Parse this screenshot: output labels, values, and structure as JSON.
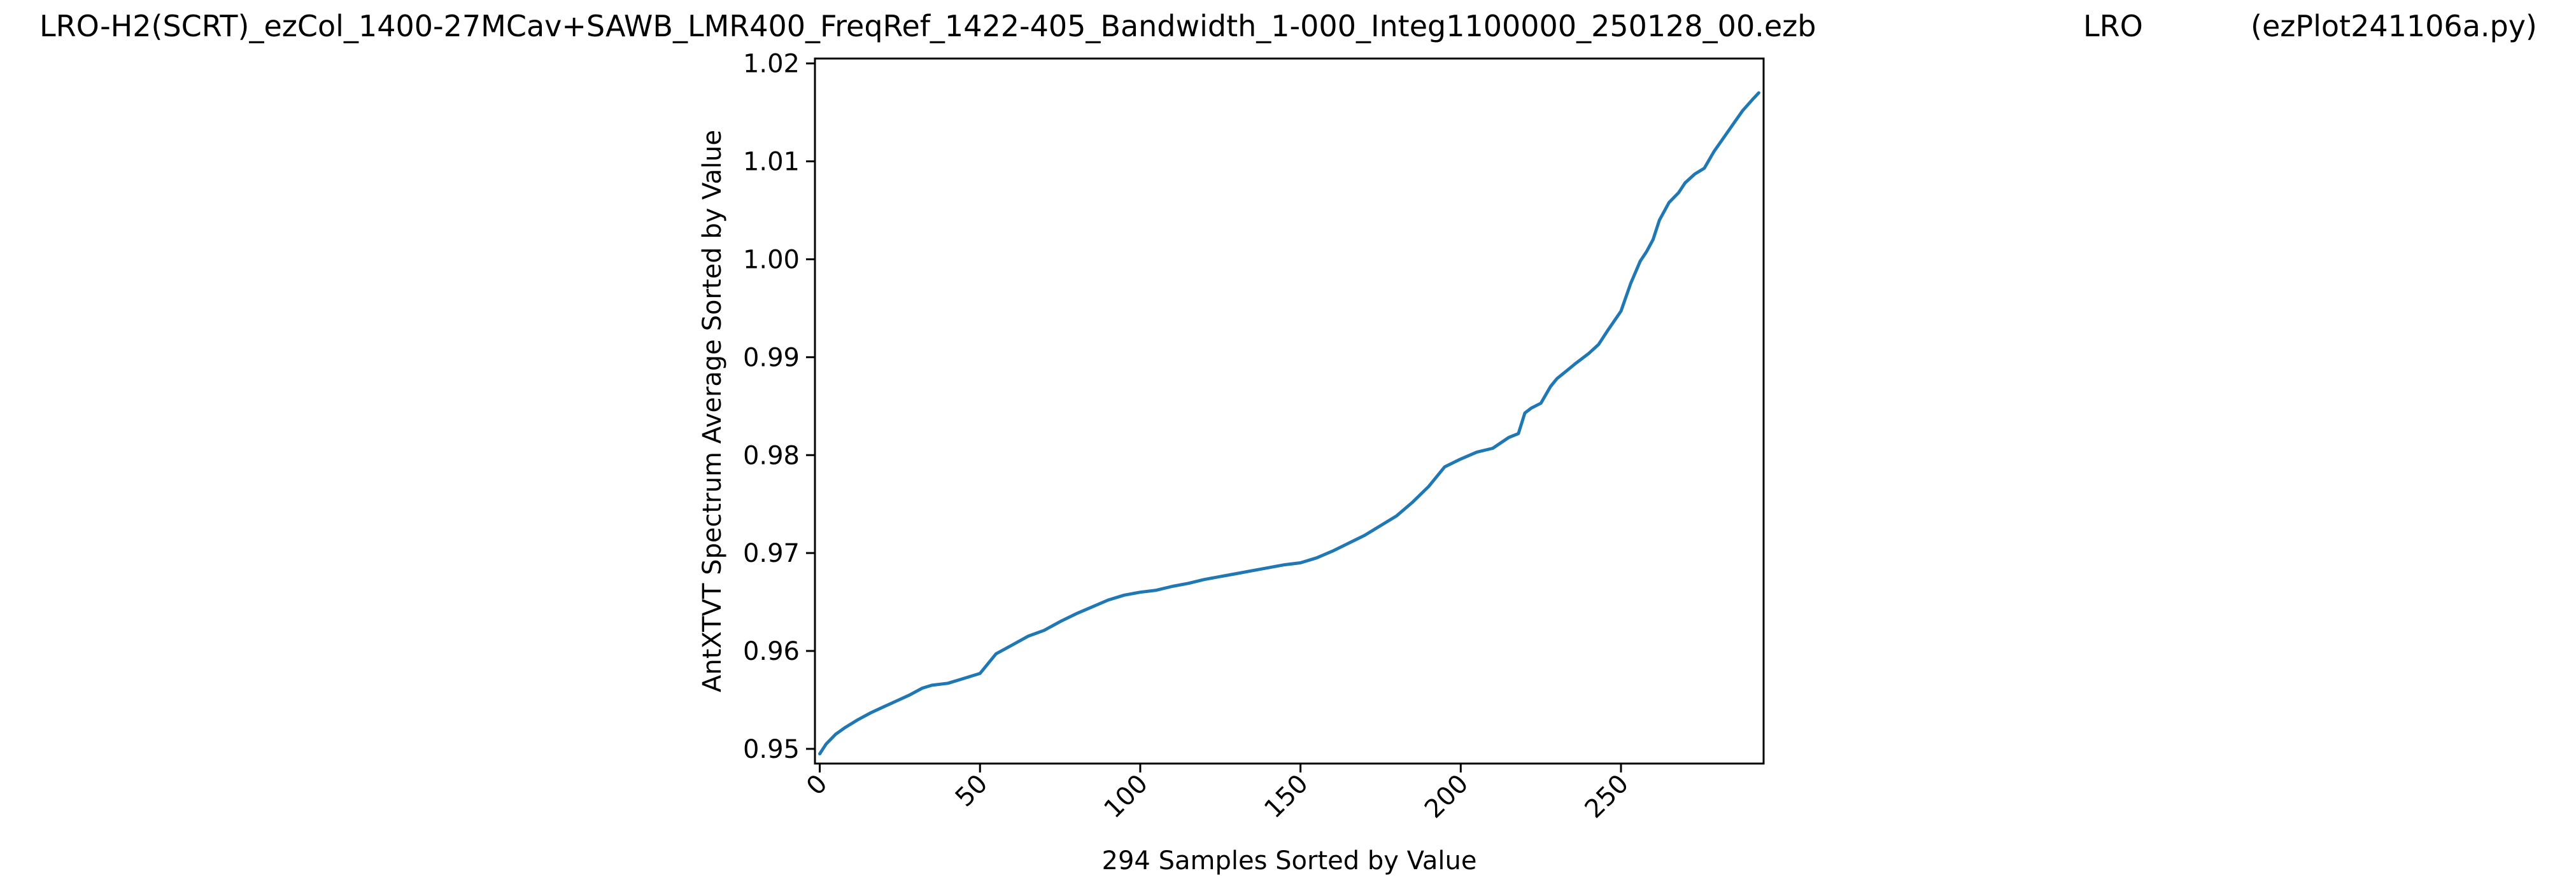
{
  "header": {
    "file_title": "LRO-H2(SCRT)_ezCol_1400-27MCav+SAWB_LMR400_FreqRef_1422-405_Bandwidth_1-000_Integ1100000_250128_00.ezb",
    "station": "LRO",
    "program": "(ezPlot241106a.py)"
  },
  "chart_data": {
    "type": "line",
    "title": "",
    "xlabel": "294 Samples Sorted by Value",
    "ylabel": "AntXTVT Spectrum Average Sorted by Value",
    "xlim": [
      -1.5,
      294.5
    ],
    "ylim": [
      0.9485,
      1.0205
    ],
    "x_ticks": [
      0,
      50,
      100,
      150,
      200,
      250
    ],
    "x_tick_labels": [
      "0",
      "50",
      "100",
      "150",
      "200",
      "250"
    ],
    "y_ticks": [
      0.95,
      0.96,
      0.97,
      0.98,
      0.99,
      1.0,
      1.01,
      1.02
    ],
    "y_tick_labels": [
      "0.95",
      "0.96",
      "0.97",
      "0.98",
      "0.99",
      "1.00",
      "1.01",
      "1.02"
    ],
    "grid": false,
    "series_color": "#1f77b4",
    "series": [
      {
        "x": [
          0,
          2,
          5,
          8,
          12,
          16,
          20,
          24,
          28,
          32,
          35,
          40,
          45,
          50,
          55,
          60,
          65,
          70,
          75,
          80,
          85,
          90,
          95,
          100,
          105,
          110,
          115,
          120,
          125,
          130,
          135,
          140,
          145,
          150,
          155,
          160,
          165,
          170,
          175,
          180,
          185,
          190,
          195,
          200,
          205,
          210,
          215,
          218,
          220,
          222,
          225,
          228,
          230,
          233,
          236,
          240,
          243,
          246,
          250,
          253,
          256,
          258,
          260,
          262,
          265,
          268,
          270,
          273,
          276,
          279,
          282,
          285,
          288,
          291,
          293
        ],
        "y": [
          0.9495,
          0.9505,
          0.9515,
          0.9522,
          0.953,
          0.9537,
          0.9543,
          0.9549,
          0.9555,
          0.9562,
          0.9565,
          0.9567,
          0.9572,
          0.9577,
          0.9597,
          0.9606,
          0.9615,
          0.9621,
          0.963,
          0.9638,
          0.9645,
          0.9652,
          0.9657,
          0.966,
          0.9662,
          0.9666,
          0.9669,
          0.9673,
          0.9676,
          0.9679,
          0.9682,
          0.9685,
          0.9688,
          0.969,
          0.9695,
          0.9702,
          0.971,
          0.9718,
          0.9728,
          0.9738,
          0.9752,
          0.9768,
          0.9788,
          0.9796,
          0.9803,
          0.9807,
          0.9818,
          0.9822,
          0.9843,
          0.9848,
          0.9853,
          0.987,
          0.9878,
          0.9886,
          0.9894,
          0.9904,
          0.9913,
          0.9928,
          0.9947,
          0.9975,
          0.9998,
          1.0008,
          1.002,
          1.004,
          1.0058,
          1.0068,
          1.0078,
          1.0087,
          1.0093,
          1.011,
          1.0124,
          1.0138,
          1.0152,
          1.0163,
          1.017
        ]
      }
    ]
  }
}
